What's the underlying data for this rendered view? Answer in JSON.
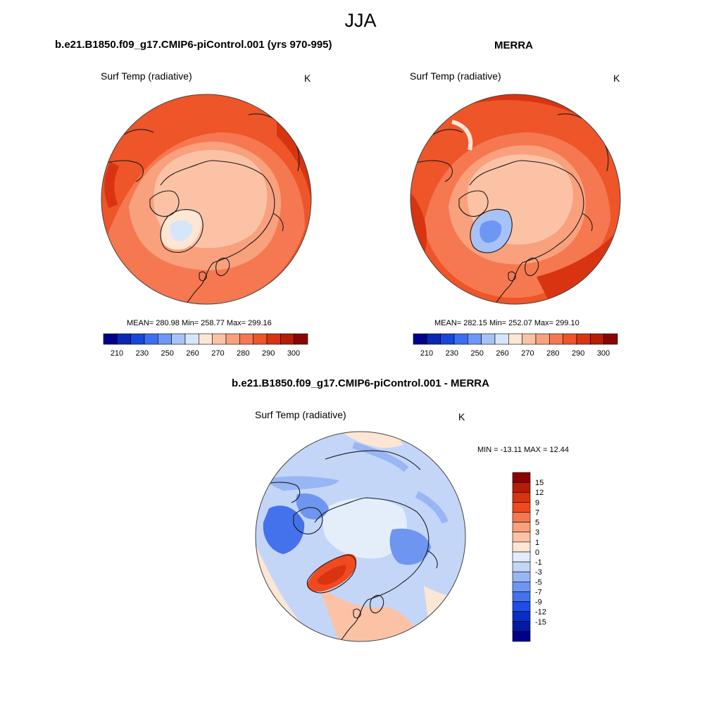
{
  "figure": {
    "title": "JJA"
  },
  "colors": {
    "background": "#ffffff",
    "land_outline": "#1a1a1a",
    "map_border": "#444444"
  },
  "panels": [
    {
      "id": "model",
      "title": "b.e21.B1850.f09_g17.CMIP6-piControl.001 (yrs 970-995)",
      "variable": "Surf Temp (radiative)",
      "units": "K",
      "stats": "MEAN= 280.98  Min= 258.77  Max= 299.16",
      "colorbar": {
        "colors": [
          "#00008b",
          "#0a28b4",
          "#1846dc",
          "#3c6ef0",
          "#6e96f5",
          "#a6c2f7",
          "#d6e6fa",
          "#fde6d4",
          "#fbc2a6",
          "#f9a07c",
          "#f67850",
          "#ee5528",
          "#d83412",
          "#b51d07",
          "#8a0500"
        ],
        "tick_labels": [
          "210",
          "230",
          "250",
          "260",
          "270",
          "280",
          "290",
          "300"
        ]
      }
    },
    {
      "id": "obs",
      "title": "MERRA",
      "variable": "Surf Temp (radiative)",
      "units": "K",
      "stats": "MEAN= 282.15  Min= 252.07  Max= 299.10",
      "colorbar": {
        "colors": [
          "#00008b",
          "#0a28b4",
          "#1846dc",
          "#3c6ef0",
          "#6e96f5",
          "#a6c2f7",
          "#d6e6fa",
          "#fde6d4",
          "#fbc2a6",
          "#f9a07c",
          "#f67850",
          "#ee5528",
          "#d83412",
          "#b51d07",
          "#8a0500"
        ],
        "tick_labels": [
          "210",
          "230",
          "250",
          "260",
          "270",
          "280",
          "290",
          "300"
        ]
      }
    },
    {
      "id": "diff",
      "title": "b.e21.B1850.f09_g17.CMIP6-piControl.001 - MERRA",
      "variable": "Surf Temp (radiative)",
      "units": "K",
      "stats": "MIN = -13.11 MAX =  12.44",
      "colorbar": {
        "colors": [
          "#8a0500",
          "#b51d07",
          "#d83412",
          "#f24a20",
          "#f67850",
          "#f9a07c",
          "#fbc2a6",
          "#fde6d4",
          "#e4eefb",
          "#c3d6f8",
          "#98b6f4",
          "#6e96f0",
          "#4472ec",
          "#1e4ee6",
          "#0a2ec4",
          "#041aa0",
          "#00008b"
        ],
        "tick_labels": [
          "15",
          "12",
          "9",
          "7",
          "5",
          "3",
          "1",
          "0",
          "-1",
          "-3",
          "-5",
          "-7",
          "-9",
          "-12",
          "-15"
        ]
      }
    }
  ]
}
